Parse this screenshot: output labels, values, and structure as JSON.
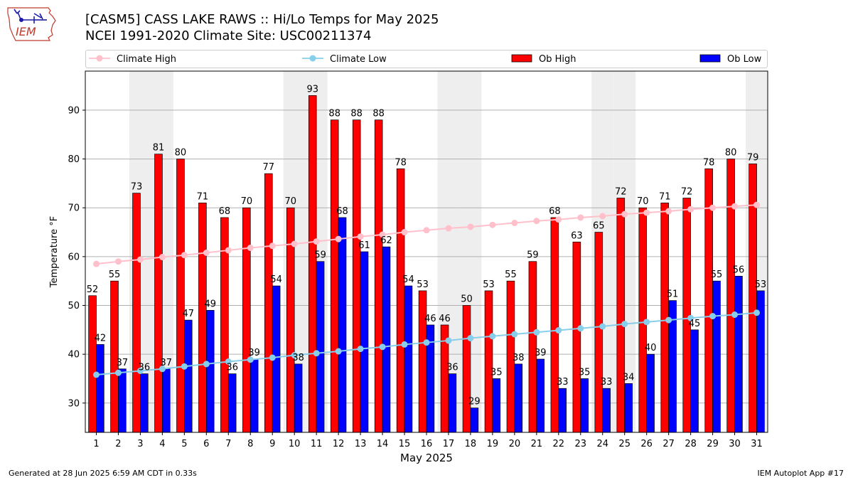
{
  "header": {
    "title_line1": "[CASM5] CASS LAKE RAWS :: Hi/Lo Temps for May 2025",
    "title_line2": "NCEI 1991-2020 Climate Site: USC00211374",
    "logo_text": "IEM"
  },
  "footer": {
    "generated": "Generated at 28 Jun 2025 6:59 AM CDT in 0.33s",
    "app": "IEM Autoplot App #17"
  },
  "colors": {
    "ob_high": "#ff0000",
    "ob_low": "#0000ff",
    "climate_high": "#ffc0cb",
    "climate_low": "#87ceeb",
    "weekend_shade": "#eeeeee",
    "grid": "#b0b0b0"
  },
  "chart_data": {
    "type": "bar",
    "xlabel": "May 2025",
    "ylabel": "Temperature °F",
    "ylim": [
      24,
      98
    ],
    "yticks": [
      30,
      40,
      50,
      60,
      70,
      80,
      90
    ],
    "grid": "horizontal",
    "legend_placement": "top",
    "categories": [
      "1",
      "2",
      "3",
      "4",
      "5",
      "6",
      "7",
      "8",
      "9",
      "10",
      "11",
      "12",
      "13",
      "14",
      "15",
      "16",
      "17",
      "18",
      "19",
      "20",
      "21",
      "22",
      "23",
      "24",
      "25",
      "26",
      "27",
      "28",
      "29",
      "30",
      "31"
    ],
    "shaded_days": [
      3,
      4,
      10,
      11,
      17,
      18,
      24,
      25,
      31
    ],
    "series": [
      {
        "name": "Ob High",
        "kind": "bar",
        "values": [
          52,
          55,
          73,
          81,
          80,
          71,
          68,
          70,
          77,
          70,
          93,
          88,
          88,
          88,
          78,
          53,
          46,
          50,
          53,
          55,
          59,
          68,
          63,
          65,
          72,
          70,
          71,
          72,
          78,
          80,
          79
        ]
      },
      {
        "name": "Ob Low",
        "kind": "bar",
        "values": [
          42,
          37,
          36,
          37,
          47,
          49,
          36,
          39,
          54,
          38,
          59,
          68,
          61,
          62,
          54,
          46,
          36,
          29,
          35,
          38,
          39,
          33,
          35,
          33,
          34,
          40,
          51,
          45,
          55,
          56,
          53
        ]
      },
      {
        "name": "Climate High",
        "kind": "line",
        "values": [
          58.5,
          59.0,
          59.4,
          59.9,
          60.3,
          60.8,
          61.3,
          61.8,
          62.2,
          62.6,
          63.1,
          63.6,
          64.1,
          64.5,
          65.0,
          65.4,
          65.8,
          66.1,
          66.5,
          66.9,
          67.3,
          67.6,
          68.0,
          68.3,
          68.7,
          69.0,
          69.3,
          69.7,
          70.0,
          70.3,
          70.6
        ]
      },
      {
        "name": "Climate Low",
        "kind": "line",
        "values": [
          35.8,
          36.2,
          36.6,
          37.0,
          37.5,
          38.0,
          38.5,
          38.9,
          39.3,
          39.8,
          40.2,
          40.6,
          41.1,
          41.5,
          42.0,
          42.4,
          42.8,
          43.3,
          43.7,
          44.1,
          44.5,
          44.9,
          45.3,
          45.7,
          46.2,
          46.6,
          47.0,
          47.4,
          47.8,
          48.1,
          48.5
        ]
      }
    ]
  }
}
